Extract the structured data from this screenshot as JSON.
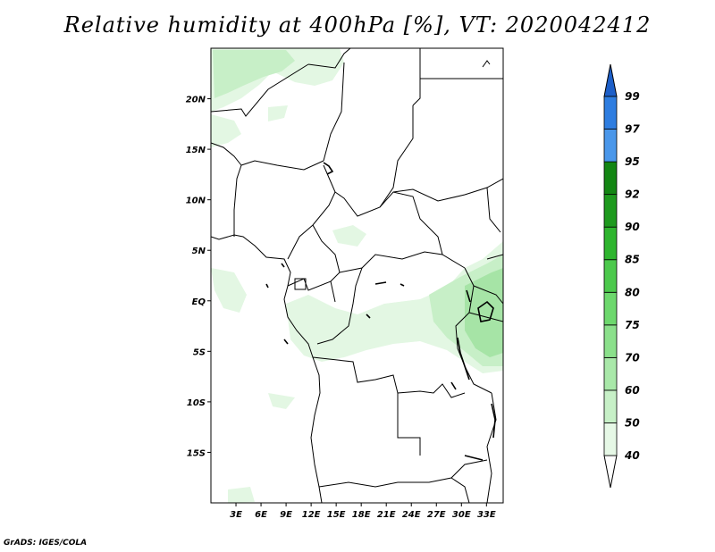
{
  "title": "Relative humidity at 400hPa [%], VT: 2020042412",
  "credit": "GrADS: IGES/COLA",
  "map": {
    "lon_range": [
      0,
      35
    ],
    "lat_range": [
      -20,
      25
    ],
    "lon_ticks": [
      {
        "v": 3,
        "label": "3E"
      },
      {
        "v": 6,
        "label": "6E"
      },
      {
        "v": 9,
        "label": "9E"
      },
      {
        "v": 12,
        "label": "12E"
      },
      {
        "v": 15,
        "label": "15E"
      },
      {
        "v": 18,
        "label": "18E"
      },
      {
        "v": 21,
        "label": "21E"
      },
      {
        "v": 24,
        "label": "24E"
      },
      {
        "v": 27,
        "label": "27E"
      },
      {
        "v": 30,
        "label": "30E"
      },
      {
        "v": 33,
        "label": "33E"
      }
    ],
    "lat_ticks": [
      {
        "v": 20,
        "label": "20N"
      },
      {
        "v": 15,
        "label": "15N"
      },
      {
        "v": 10,
        "label": "10N"
      },
      {
        "v": 5,
        "label": "5N"
      },
      {
        "v": 0,
        "label": "EQ"
      },
      {
        "v": -5,
        "label": "5S"
      },
      {
        "v": -10,
        "label": "10S"
      },
      {
        "v": -15,
        "label": "15S"
      }
    ]
  },
  "colorbar": {
    "levels": [
      "40",
      "50",
      "60",
      "70",
      "75",
      "80",
      "85",
      "90",
      "92",
      "95",
      "97",
      "99"
    ],
    "colors": [
      "#ffffff",
      "#e6f8e6",
      "#c7f0c7",
      "#a9e8a9",
      "#8be08b",
      "#6dd86d",
      "#4cc94c",
      "#2eb52e",
      "#1e9a1e",
      "#138613",
      "#4a97ea",
      "#2e7de0",
      "#1d5fc8"
    ]
  },
  "humidity_colors": {
    "light": "#e3f7e3",
    "mid": "#c7efc7",
    "strong": "#a6e4a6",
    "deep": "#8adb8a"
  }
}
